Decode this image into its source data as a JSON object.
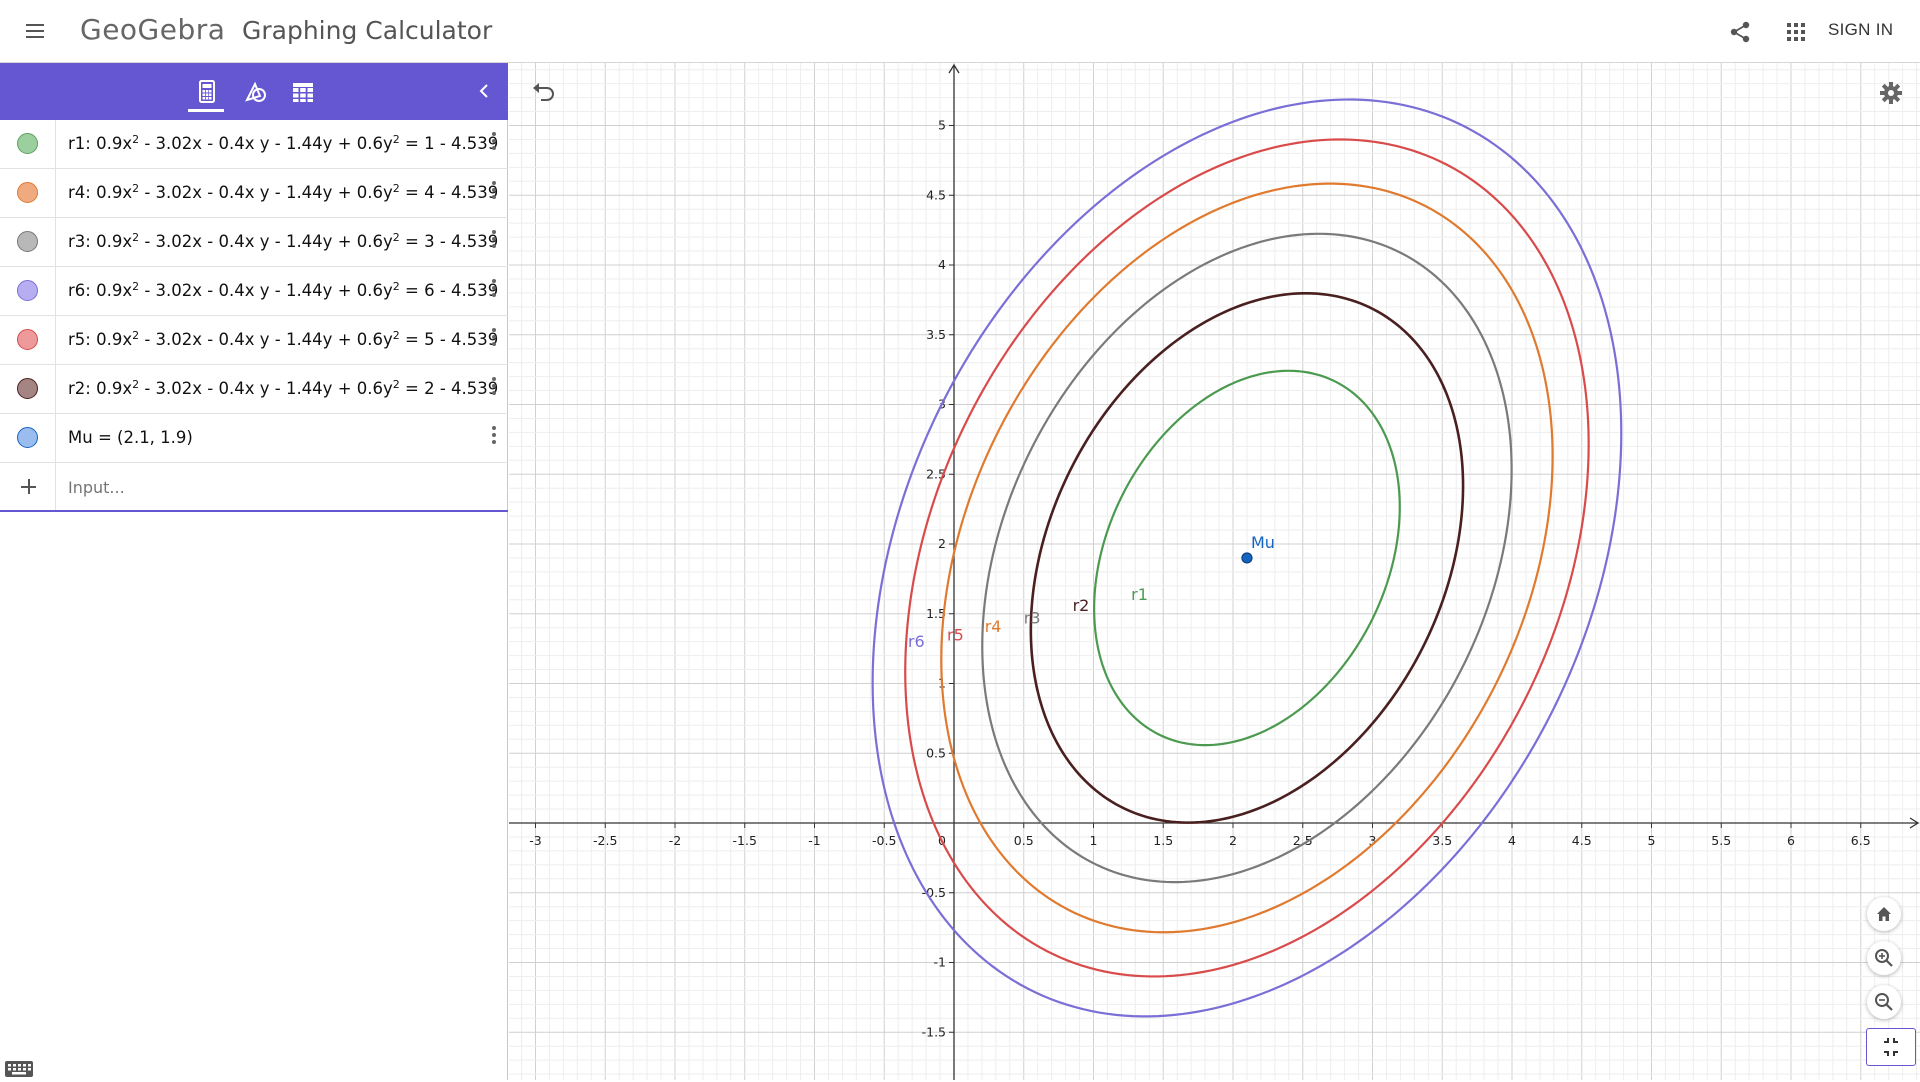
{
  "header": {
    "brand": "GeoGebra",
    "app_title": "Graphing Calculator",
    "sign_in": "SIGN IN",
    "icons": {
      "menu": "hamburger-menu-icon",
      "share": "share-icon",
      "apps": "apps-grid-icon"
    }
  },
  "toolbar": {
    "tabs": [
      {
        "name": "algebra-tab",
        "icon": "calculator-icon",
        "active": true
      },
      {
        "name": "tools-tab",
        "icon": "geometry-tools-icon",
        "active": false
      },
      {
        "name": "table-tab",
        "icon": "table-icon",
        "active": false
      }
    ],
    "collapse_icon": "chevron-left-icon"
  },
  "objects": [
    {
      "id": "r1",
      "color": "#5ba15f",
      "marble": "#9ccf9e",
      "prefix": "r1: 0.9x",
      "mid1": " - 3.02x - 0.4x y - 1.44y + 0.6y",
      "suffix": " = 1 - 4.539",
      "sq": "2"
    },
    {
      "id": "r4",
      "color": "#e07a2f",
      "marble": "#f0aa80",
      "prefix": "r4: 0.9x",
      "mid1": " - 3.02x - 0.4x y - 1.44y + 0.6y",
      "suffix": " = 4 - 4.539",
      "sq": "2"
    },
    {
      "id": "r3",
      "color": "#777777",
      "marble": "#b8b8b8",
      "prefix": "r3: 0.9x",
      "mid1": " - 3.02x - 0.4x y - 1.44y + 0.6y",
      "suffix": " = 3 - 4.539",
      "sq": "2"
    },
    {
      "id": "r6",
      "color": "#7a6fd6",
      "marble": "#b6aef0",
      "prefix": "r6: 0.9x",
      "mid1": " - 3.02x - 0.4x y - 1.44y + 0.6y",
      "suffix": " = 6 - 4.539",
      "sq": "2"
    },
    {
      "id": "r5",
      "color": "#d94b4b",
      "marble": "#ee9a9a",
      "prefix": "r5: 0.9x",
      "mid1": " - 3.02x - 0.4x y - 1.44y + 0.6y",
      "suffix": " = 5 - 4.539",
      "sq": "2"
    },
    {
      "id": "r2",
      "color": "#4a1f1f",
      "marble": "#a58484",
      "prefix": "r2: 0.9x",
      "mid1": " - 3.02x - 0.4x y - 1.44y + 0.6y",
      "suffix": " = 2 - 4.539",
      "sq": "2"
    },
    {
      "id": "Mu",
      "color": "#1565c0",
      "marble": "#9bbcef",
      "text": "Mu = (2.1, 1.9)"
    }
  ],
  "input": {
    "placeholder": "Input..."
  },
  "graph": {
    "x_ticks": [
      "-3",
      "-2.5",
      "-2",
      "-1.5",
      "-1",
      "-0.5",
      "0",
      "0.5",
      "1",
      "1.5",
      "2",
      "2.5",
      "3",
      "3.5",
      "4",
      "4.5",
      "5",
      "5.5",
      "6",
      "6.5"
    ],
    "y_ticks": [
      "-1.5",
      "-1",
      "-0.5",
      "0.5",
      "1",
      "1.5",
      "2",
      "2.5",
      "3",
      "3.5",
      "4",
      "4.5",
      "5"
    ],
    "point": {
      "label": "Mu",
      "x": 2.1,
      "y": 1.9,
      "color": "#1565c0"
    },
    "conic": {
      "a": 0.9,
      "b": -0.4,
      "c": 0.6,
      "d": -3.02,
      "e": -1.44,
      "base": -4.539
    },
    "curves": [
      {
        "label": "r1",
        "level": 1,
        "color": "#4c9a50",
        "width": 2.2,
        "label_x": 1.27,
        "label_y": 1.6
      },
      {
        "label": "r2",
        "level": 2,
        "color": "#4a1f1f",
        "width": 2.6,
        "label_x": 0.85,
        "label_y": 1.52
      },
      {
        "label": "r3",
        "level": 3,
        "color": "#7a7a7a",
        "width": 2.2,
        "label_x": 0.5,
        "label_y": 1.43
      },
      {
        "label": "r4",
        "level": 4,
        "color": "#e07a2f",
        "width": 2.2,
        "label_x": 0.22,
        "label_y": 1.37
      },
      {
        "label": "r5",
        "level": 5,
        "color": "#d94b4b",
        "width": 2.2,
        "label_x": -0.05,
        "label_y": 1.31
      },
      {
        "label": "r6",
        "level": 6,
        "color": "#7a6fd6",
        "width": 2.2,
        "label_x": -0.33,
        "label_y": 1.26
      }
    ],
    "controls": {
      "undo": "undo-icon",
      "settings": "gear-icon",
      "home": "home-icon",
      "zoom_in": "zoom-in-icon",
      "zoom_out": "zoom-out-icon",
      "fullscreen": "exit-fullscreen-icon",
      "keyboard": "keyboard-icon"
    }
  }
}
